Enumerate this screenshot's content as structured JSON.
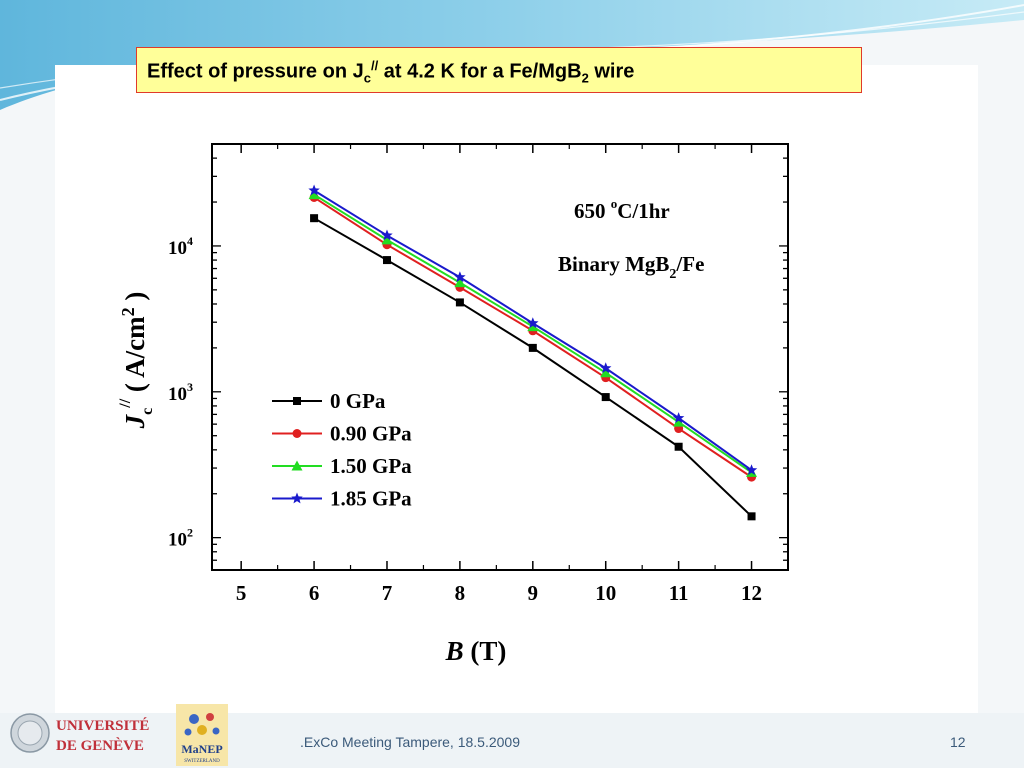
{
  "slide": {
    "title": {
      "part1": "Effect of pressure on J",
      "sub1": "c",
      "sup1": "//",
      "part2": " at 4.2 K for a Fe/MgB",
      "sub2": "2",
      "part3": " wire"
    },
    "footer": ".ExCo Meeting Tampere, 18.5.2009",
    "page_number": "12",
    "logo_unige": {
      "line1": "UNIVERSITÉ",
      "line2": "DE GENÈVE"
    },
    "logo_manep": {
      "main": "MaNEP",
      "sub": "SWITZERLAND"
    }
  },
  "chart_data": {
    "type": "line",
    "annotation_1": {
      "main": "650 ",
      "sup": "o",
      "rest": "C/1hr"
    },
    "annotation_2": {
      "main": "Binary MgB",
      "sub": "2",
      "rest": "/Fe"
    },
    "xlabel": {
      "italic": "B",
      "rest": " (T)"
    },
    "ylabel": {
      "italic": "J",
      "sub": "c",
      "sup": "//",
      "rest_a": " ( A/cm",
      "sup2": "2",
      "rest_b": " )"
    },
    "x_ticks": [
      "5",
      "6",
      "7",
      "8",
      "9",
      "10",
      "11",
      "12"
    ],
    "y_ticks": [
      {
        "base": "10",
        "exp": "2",
        "value": 100
      },
      {
        "base": "10",
        "exp": "3",
        "value": 1000
      },
      {
        "base": "10",
        "exp": "4",
        "value": 10000
      }
    ],
    "xlim": [
      4.6,
      12.5
    ],
    "ylim": [
      60,
      50000
    ],
    "yscale": "log",
    "legend_position": "lower-left",
    "x": [
      6,
      7,
      8,
      9,
      10,
      11,
      12
    ],
    "series": [
      {
        "name": "0 GPa",
        "color": "#000000",
        "marker": "square",
        "values": [
          15500,
          8000,
          4100,
          2000,
          920,
          420,
          140
        ]
      },
      {
        "name": "0.90 GPa",
        "color": "#e02020",
        "marker": "circle",
        "values": [
          21500,
          10200,
          5200,
          2620,
          1250,
          560,
          260
        ]
      },
      {
        "name": "1.50 GPa",
        "color": "#22dd22",
        "marker": "triangle",
        "values": [
          22500,
          11000,
          5600,
          2800,
          1350,
          620,
          280
        ]
      },
      {
        "name": "1.85 GPa",
        "color": "#1a1acc",
        "marker": "star",
        "values": [
          24000,
          11800,
          6100,
          2950,
          1450,
          660,
          290
        ]
      }
    ]
  }
}
